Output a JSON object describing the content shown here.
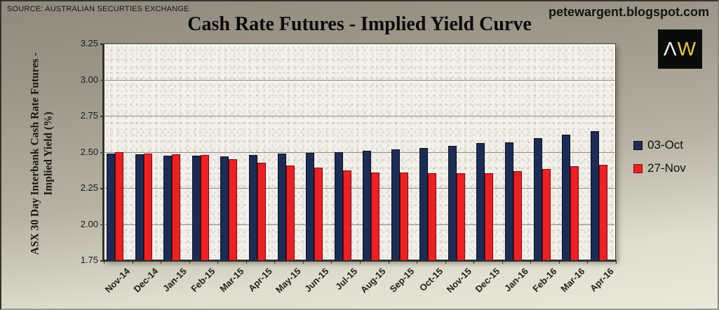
{
  "header": {
    "source": "SOURCE: AUSTRALIAN SECURTIES EXCHANGE",
    "site": "petewargent.blogspot.com",
    "logo": {
      "letter1": "Λ",
      "letter2": "W",
      "bg_color": "#0b0b0b",
      "letter1_color": "#f7f7f2",
      "letter2_color": "#e9c73c"
    }
  },
  "chart_data": {
    "type": "bar",
    "title": "Cash Rate Futures - Implied Yield Curve",
    "ylabel": "ASX 30 Day Interbank Cash Rate Futures - Implied Yield (%)",
    "ylabel_line1": "ASX 30 Day Interbank Cash Rate Futures -",
    "ylabel_line2": "Implied Yield (%)",
    "categories": [
      "Nov-14",
      "Dec-14",
      "Jan-15",
      "Feb-15",
      "Mar-15",
      "Apr-15",
      "May-15",
      "Jun-15",
      "Jul-15",
      "Aug-15",
      "Sep-15",
      "Oct-15",
      "Nov-15",
      "Dec-15",
      "Jan-16",
      "Feb-16",
      "Mar-16",
      "Apr-16"
    ],
    "series": [
      {
        "name": "03-Oct",
        "color": "#1b2d56",
        "border_color": "#0c0c1c",
        "values": [
          2.49,
          2.485,
          2.475,
          2.475,
          2.47,
          2.48,
          2.49,
          2.495,
          2.5,
          2.505,
          2.515,
          2.525,
          2.54,
          2.56,
          2.565,
          2.595,
          2.62,
          2.645
        ]
      },
      {
        "name": "27-Nov",
        "color": "#ee2024",
        "border_color": "#7d0a0a",
        "values": [
          2.5,
          2.49,
          2.485,
          2.48,
          2.45,
          2.425,
          2.405,
          2.39,
          2.37,
          2.355,
          2.355,
          2.35,
          2.35,
          2.35,
          2.365,
          2.38,
          2.4,
          2.41
        ]
      }
    ],
    "ylim": [
      1.75,
      3.25
    ],
    "ytick_step": 0.25,
    "ytick_labels": [
      "3.25",
      "3.00",
      "2.75",
      "2.50",
      "2.25",
      "2.00",
      "1.75"
    ],
    "grid": true,
    "legend_position": "right",
    "plot_bg": "#f2f0ea",
    "page_bg_top": "#8f8a7c",
    "page_bg_bottom": "#ebe8da"
  }
}
